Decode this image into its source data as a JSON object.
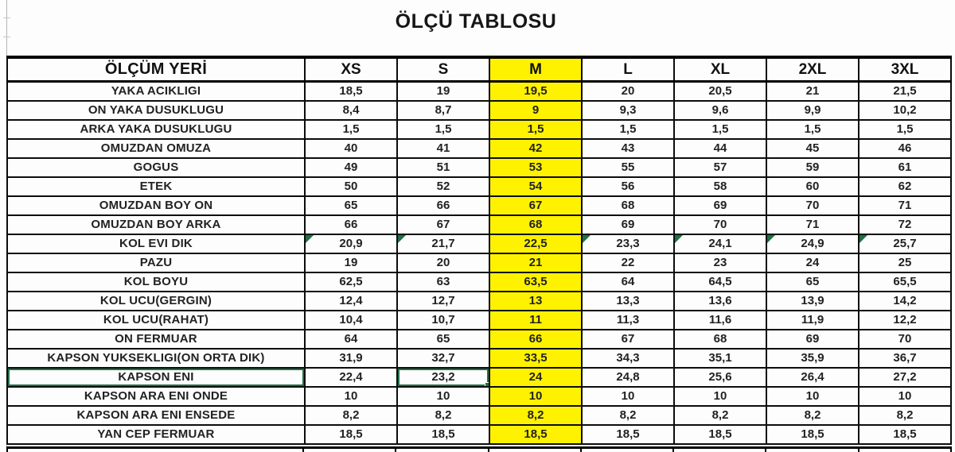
{
  "title": "ÖLÇÜ TABLOSU",
  "table": {
    "columns": [
      "ÖLÇÜM YERİ",
      "XS",
      "S",
      "M",
      "L",
      "XL",
      "2XL",
      "3XL"
    ],
    "highlighted_column": "M",
    "rows": [
      {
        "label": "YAKA ACIKLIGI",
        "values": [
          "18,5",
          "19",
          "19,5",
          "20",
          "20,5",
          "21",
          "21,5"
        ]
      },
      {
        "label": "ON YAKA DUSUKLUGU",
        "values": [
          "8,4",
          "8,7",
          "9",
          "9,3",
          "9,6",
          "9,9",
          "10,2"
        ]
      },
      {
        "label": "ARKA YAKA DUSUKLUGU",
        "values": [
          "1,5",
          "1,5",
          "1,5",
          "1,5",
          "1,5",
          "1,5",
          "1,5"
        ]
      },
      {
        "label": "OMUZDAN OMUZA",
        "values": [
          "40",
          "41",
          "42",
          "43",
          "44",
          "45",
          "46"
        ]
      },
      {
        "label": "GOGUS",
        "values": [
          "49",
          "51",
          "53",
          "55",
          "57",
          "59",
          "61"
        ]
      },
      {
        "label": "ETEK",
        "values": [
          "50",
          "52",
          "54",
          "56",
          "58",
          "60",
          "62"
        ]
      },
      {
        "label": "OMUZDAN BOY ON",
        "values": [
          "65",
          "66",
          "67",
          "68",
          "69",
          "70",
          "71"
        ]
      },
      {
        "label": "OMUZDAN BOY ARKA",
        "values": [
          "66",
          "67",
          "68",
          "69",
          "70",
          "71",
          "72"
        ]
      },
      {
        "label": "KOL EVI DIK",
        "values": [
          "20,9",
          "21,7",
          "22,5",
          "23,3",
          "24,1",
          "24,9",
          "25,7"
        ]
      },
      {
        "label": "PAZU",
        "values": [
          "19",
          "20",
          "21",
          "22",
          "23",
          "24",
          "25"
        ]
      },
      {
        "label": "KOL BOYU",
        "values": [
          "62,5",
          "63",
          "63,5",
          "64",
          "64,5",
          "65",
          "65,5"
        ]
      },
      {
        "label": "KOL UCU(GERGIN)",
        "values": [
          "12,4",
          "12,7",
          "13",
          "13,3",
          "13,6",
          "13,9",
          "14,2"
        ]
      },
      {
        "label": "KOL UCU(RAHAT)",
        "values": [
          "10,4",
          "10,7",
          "11",
          "11,3",
          "11,6",
          "11,9",
          "12,2"
        ]
      },
      {
        "label": "ON FERMUAR",
        "values": [
          "64",
          "65",
          "66",
          "67",
          "68",
          "69",
          "70"
        ]
      },
      {
        "label": "KAPSON YUKSEKLIGI(ON ORTA DIK)",
        "values": [
          "31,9",
          "32,7",
          "33,5",
          "34,3",
          "35,1",
          "35,9",
          "36,7"
        ]
      },
      {
        "label": "KAPSON ENI",
        "values": [
          "22,4",
          "23,2",
          "24",
          "24,8",
          "25,6",
          "26,4",
          "27,2"
        ]
      },
      {
        "label": "KAPSON ARA ENI ONDE",
        "values": [
          "10",
          "10",
          "10",
          "10",
          "10",
          "10",
          "10"
        ]
      },
      {
        "label": "KAPSON ARA ENI ENSEDE",
        "values": [
          "8,2",
          "8,2",
          "8,2",
          "8,2",
          "8,2",
          "8,2",
          "8,2"
        ]
      },
      {
        "label": "YAN CEP FERMUAR",
        "values": [
          "18,5",
          "18,5",
          "18,5",
          "18,5",
          "18,5",
          "18,5",
          "18,5"
        ]
      }
    ]
  },
  "annotations": {
    "flagged_row_label": "KOL EVI DIK",
    "flag_columns": [
      "XS",
      "S",
      "L",
      "XL",
      "2XL",
      "3XL"
    ],
    "selected_cell": {
      "row_label": "KAPSON ENI",
      "column": "S",
      "value": "23,2"
    },
    "selected_row_label": "KAPSON ENI"
  },
  "colors": {
    "highlight_yellow": "#FFF200",
    "selection_green": "#1F7246",
    "flag_triangle_green": "#1E7145",
    "grid_black": "#0C0C0C"
  }
}
